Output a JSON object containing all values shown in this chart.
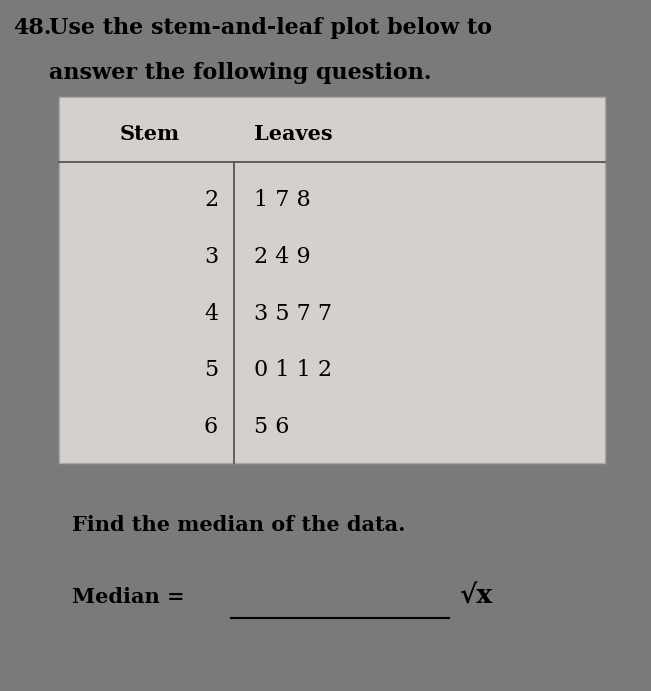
{
  "question_number": "48.",
  "question_line1": "Use the stem-and-leaf plot below to",
  "question_line2": "answer the following question.",
  "table_header_stem": "Stem",
  "table_header_leaves": "Leaves",
  "stems": [
    "2",
    "3",
    "4",
    "5",
    "6"
  ],
  "leaves": [
    "1 7 8",
    "2 4 9",
    "3 5 7 7",
    "0 1 1 2",
    "5 6"
  ],
  "find_text": "Find the median of the data.",
  "median_label": "Median =",
  "sqrt_label": "√x",
  "bg_color": "#7a7a7a",
  "table_bg_color": "#d4d1cc",
  "text_color": "#000000",
  "header_font_size": 15,
  "body_font_size": 16,
  "question_font_size": 16
}
